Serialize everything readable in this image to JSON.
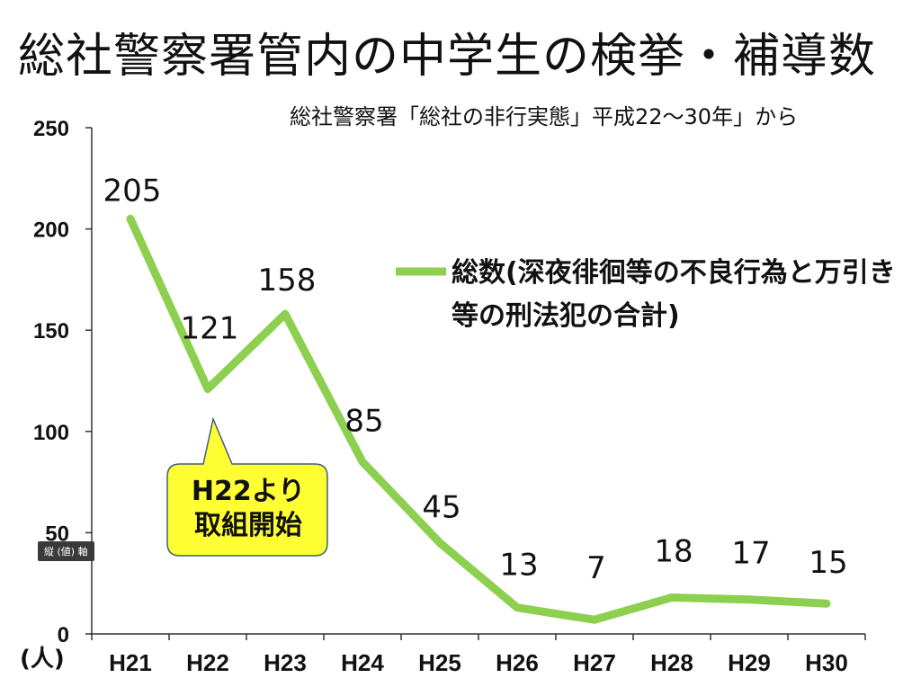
{
  "title": "総社警察署管内の中学生の検挙・補導数",
  "subtitle": "総社警察署「総社の非行実態」平成22〜30年」から",
  "y_unit_label": "(人)",
  "legend_text": "総数(深夜徘徊等の不良行為と万引き等の刑法犯の合計)",
  "callout": {
    "line1": "H22より",
    "line2": "取組開始"
  },
  "tooltip": "縦 (値) 軸",
  "colors": {
    "line": "#8dcf4f",
    "callout_fill": "#ffff33",
    "callout_border": "#3f5f7f",
    "axis": "#333333"
  },
  "chart_data": {
    "type": "line",
    "categories": [
      "H21",
      "H22",
      "H23",
      "H24",
      "H25",
      "H26",
      "H27",
      "H28",
      "H29",
      "H30"
    ],
    "series": [
      {
        "name": "総数(深夜徘徊等の不良行為と万引き等の刑法犯の合計)",
        "values": [
          205,
          121,
          158,
          85,
          45,
          13,
          7,
          18,
          17,
          15
        ]
      }
    ],
    "value_labels": [
      "205",
      "121",
      "158",
      "85",
      "45",
      "13",
      "7",
      "18",
      "17",
      "15"
    ],
    "ylim": [
      0,
      250
    ],
    "yticks": [
      0,
      50,
      100,
      150,
      200,
      250
    ],
    "ytick_labels": [
      "0",
      "50",
      "100",
      "150",
      "200",
      "250"
    ],
    "grid": false,
    "legend_position": "right"
  }
}
